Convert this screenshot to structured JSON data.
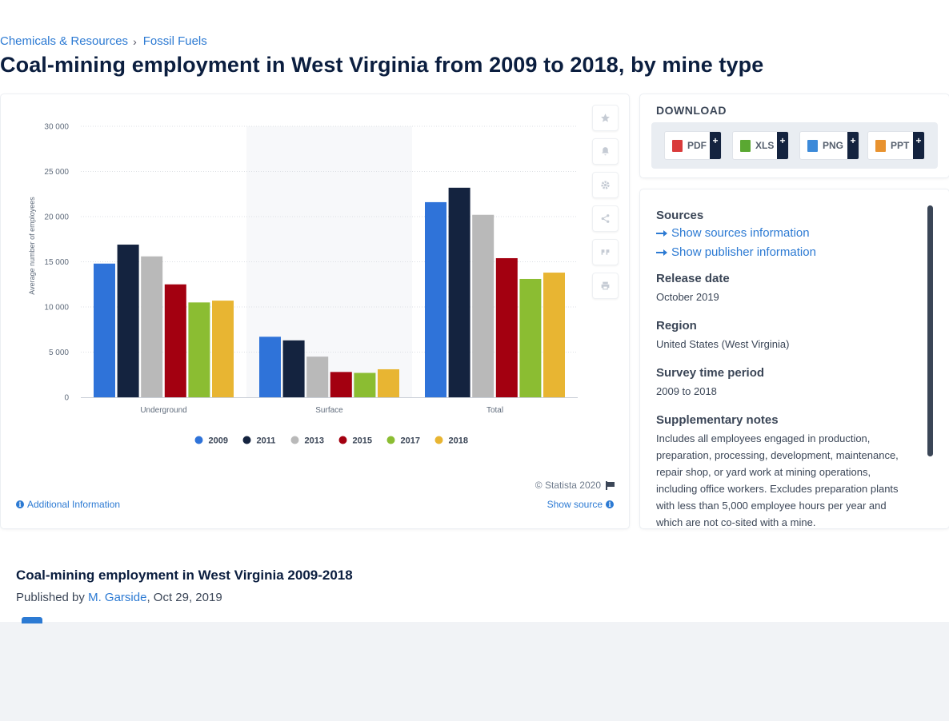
{
  "breadcrumb": {
    "items": [
      "Chemicals & Resources",
      "Fossil Fuels"
    ],
    "separator": "›"
  },
  "page_title": "Coal-mining employment in West Virginia from 2009 to 2018, by mine type",
  "chart_data": {
    "type": "bar",
    "title": "",
    "xlabel": "",
    "ylabel": "Average number of employees",
    "categories": [
      "Underground",
      "Surface",
      "Total"
    ],
    "series": [
      {
        "name": "2009",
        "color": "#2f73d9",
        "values": [
          14800,
          6700,
          21600
        ]
      },
      {
        "name": "2011",
        "color": "#14233f",
        "values": [
          16900,
          6300,
          23200
        ]
      },
      {
        "name": "2013",
        "color": "#b9b9b9",
        "values": [
          15600,
          4500,
          20200
        ]
      },
      {
        "name": "2015",
        "color": "#a30010",
        "values": [
          12500,
          2800,
          15400
        ]
      },
      {
        "name": "2017",
        "color": "#8bbd32",
        "values": [
          10500,
          2700,
          13100
        ]
      },
      {
        "name": "2018",
        "color": "#e8b532",
        "values": [
          10700,
          3100,
          13800
        ]
      }
    ],
    "yticks": [
      "0",
      "5 000",
      "10 000",
      "15 000",
      "20 000",
      "25 000",
      "30 000"
    ],
    "ylim": [
      0,
      30000
    ],
    "grid": true,
    "legend": "bottom",
    "highlighted_category": "Surface"
  },
  "chart_footer": {
    "credit": "© Statista 2020",
    "additional_info": "Additional Information",
    "show_source": "Show source"
  },
  "side_tools": [
    "star-icon",
    "bell-icon",
    "gear-icon",
    "share-icon",
    "quote-icon",
    "print-icon"
  ],
  "download": {
    "title": "DOWNLOAD",
    "formats": [
      {
        "label": "PDF",
        "color": "#d93b3b"
      },
      {
        "label": "XLS",
        "color": "#5aa832"
      },
      {
        "label": "PNG",
        "color": "#3c8ad9"
      },
      {
        "label": "PPT",
        "color": "#e8922f"
      }
    ],
    "plus": "+"
  },
  "meta": {
    "sources_heading": "Sources",
    "show_sources": "Show sources information",
    "show_publisher": "Show publisher information",
    "release_heading": "Release date",
    "release_value": "October 2019",
    "region_heading": "Region",
    "region_value": "United States (West Virginia)",
    "survey_heading": "Survey time period",
    "survey_value": "2009 to 2018",
    "notes_heading": "Supplementary notes",
    "notes_value": "Includes all employees engaged in production, preparation, processing, development, maintenance, repair shop, or yard work at mining operations, including office workers. Excludes preparation plants with less than 5,000 employee hours per year and which are not co-sited with a mine."
  },
  "publication": {
    "title": "Coal-mining employment in West Virginia 2009-2018",
    "prefix": "Published by",
    "author": "M. Garside",
    "date": ", Oct 29, 2019"
  }
}
